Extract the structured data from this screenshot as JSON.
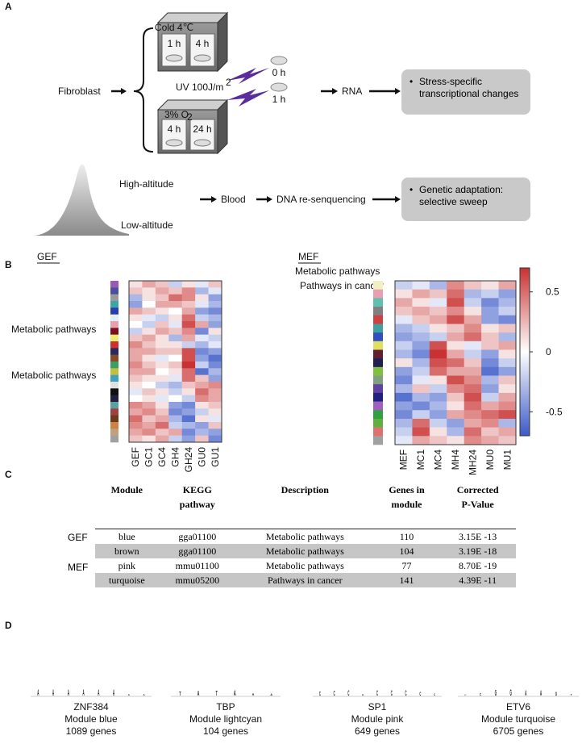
{
  "panel_a": {
    "label": "A",
    "cube_cold": {
      "title": "Cold 4℃",
      "times": [
        "1 h",
        "4 h"
      ]
    },
    "cube_hypoxia": {
      "title": "3% O",
      "title_sub": "2",
      "times": [
        "4 h",
        "24 h"
      ]
    },
    "source": "Fibroblast",
    "uv": "UV 100J/m",
    "uv_sup": "2",
    "uv_times": [
      "0 h",
      "1 h"
    ],
    "rna": "RNA",
    "rna_result": "Stress-specific transcriptional changes",
    "high": "High-altitude",
    "low": "Low-altitude",
    "blood": "Blood",
    "dna": "DNA re-senquencing",
    "dna_result": "Genetic adaptation: selective sweep"
  },
  "panel_b": {
    "label": "B",
    "heatmaps": [
      {
        "title": "GEF",
        "columns": [
          "GEF",
          "GC1",
          "GC4",
          "GH4",
          "GH24",
          "GU0",
          "GU1"
        ],
        "annotations": [
          "Metabolic pathways",
          "Metabolic pathways"
        ],
        "row_colors": [
          "#9b59b6",
          "#4b4ea0",
          "#9a9a9a",
          "#3aa6a6",
          "#2a3bb3",
          "#e0f0f0",
          "#e8a0b0",
          "#7a1020",
          "#e8f070",
          "#d03030",
          "#2a2a60",
          "#8a4a2a",
          "#3aa060",
          "#c0c040",
          "#40a0c0",
          "#e0e0e0",
          "#101010",
          "#202040",
          "#5aa0a0",
          "#a04040",
          "#6b3a1a",
          "#d08040",
          "#c0a080",
          "#a0a0a0"
        ],
        "values": [
          [
            0.1,
            0.3,
            0.2,
            -0.2,
            0.1,
            -0.1,
            0.2
          ],
          [
            0.2,
            0.1,
            0.3,
            0.2,
            0.4,
            -0.3,
            -0.1
          ],
          [
            -0.3,
            0.1,
            0.2,
            0.5,
            0.4,
            0.1,
            -0.4
          ],
          [
            -0.4,
            0.0,
            0.3,
            0.3,
            0.2,
            -0.1,
            -0.3
          ],
          [
            0.3,
            0.2,
            0.1,
            0.0,
            0.3,
            -0.4,
            -0.5
          ],
          [
            0.1,
            -0.1,
            -0.2,
            0.1,
            0.5,
            -0.2,
            -0.3
          ],
          [
            0.0,
            -0.2,
            0.2,
            -0.1,
            0.6,
            0.3,
            -0.4
          ],
          [
            -0.2,
            0.1,
            0.3,
            0.2,
            0.4,
            -0.5,
            0.1
          ],
          [
            0.2,
            0.3,
            0.1,
            -0.3,
            0.3,
            -0.1,
            -0.2
          ],
          [
            0.4,
            0.2,
            0.1,
            0.1,
            -0.2,
            -0.3,
            -0.1
          ],
          [
            0.3,
            0.3,
            0.2,
            0.2,
            0.6,
            -0.5,
            -0.4
          ],
          [
            0.3,
            0.1,
            -0.1,
            0.0,
            0.6,
            -0.4,
            -0.6
          ],
          [
            0.4,
            0.2,
            0.1,
            0.2,
            0.7,
            -0.2,
            -0.5
          ],
          [
            0.3,
            0.3,
            0.0,
            0.1,
            0.5,
            -0.6,
            -0.3
          ],
          [
            0.2,
            0.1,
            0.1,
            -0.1,
            0.5,
            0.2,
            -0.4
          ],
          [
            0.1,
            0.0,
            -0.2,
            -0.3,
            0.2,
            0.3,
            0.4
          ],
          [
            -0.1,
            0.2,
            0.1,
            -0.2,
            0.1,
            0.5,
            0.3
          ],
          [
            0.0,
            0.1,
            -0.1,
            0.0,
            -0.2,
            0.4,
            0.3
          ],
          [
            0.4,
            0.3,
            0.1,
            -0.4,
            -0.5,
            0.1,
            0.2
          ],
          [
            0.3,
            0.4,
            0.2,
            -0.5,
            -0.4,
            -0.2,
            0.1
          ],
          [
            0.5,
            0.2,
            0.3,
            -0.3,
            -0.6,
            0.1,
            -0.1
          ],
          [
            0.4,
            0.3,
            0.5,
            -0.2,
            -0.3,
            -0.4,
            0.2
          ],
          [
            0.3,
            0.4,
            0.2,
            0.3,
            -0.5,
            -0.3,
            -0.4
          ],
          [
            0.2,
            0.1,
            0.3,
            -0.2,
            -0.4,
            0.2,
            -0.5
          ]
        ]
      },
      {
        "title": "MEF",
        "columns": [
          "MEF",
          "MC1",
          "MC4",
          "MH4",
          "MH24",
          "MU0",
          "MU1"
        ],
        "annotations": [
          "Metabolic pathways",
          "Pathways in cancer"
        ],
        "row_colors": [
          "#f0f0c0",
          "#e8a0b0",
          "#60c0b0",
          "#808080",
          "#d04040",
          "#40a0a0",
          "#3050c0",
          "#e0e060",
          "#602030",
          "#202050",
          "#80c040",
          "#80a080",
          "#6040a0",
          "#202080",
          "#a060c0",
          "#30a040",
          "#60b040",
          "#e07070",
          "#a0a0a0"
        ],
        "values": [
          [
            -0.2,
            -0.1,
            -0.3,
            0.4,
            0.2,
            0.1,
            0.3
          ],
          [
            0.1,
            0.3,
            0.2,
            0.5,
            -0.3,
            -0.2,
            -0.4
          ],
          [
            0.3,
            0.1,
            -0.1,
            0.6,
            -0.2,
            -0.5,
            -0.3
          ],
          [
            0.2,
            0.3,
            0.2,
            0.4,
            0.1,
            -0.4,
            -0.2
          ],
          [
            -0.1,
            0.2,
            0.3,
            0.6,
            0.3,
            -0.4,
            -0.5
          ],
          [
            -0.3,
            -0.2,
            0.1,
            0.2,
            0.4,
            0.1,
            0.2
          ],
          [
            -0.4,
            -0.3,
            -0.2,
            0.3,
            0.5,
            0.2,
            -0.3
          ],
          [
            -0.2,
            -0.4,
            0.6,
            0.1,
            -0.1,
            0.2,
            0.3
          ],
          [
            -0.3,
            -0.5,
            0.7,
            0.3,
            -0.2,
            -0.4,
            0.1
          ],
          [
            0.1,
            -0.3,
            0.6,
            0.5,
            0.2,
            -0.5,
            -0.2
          ],
          [
            -0.4,
            -0.2,
            0.5,
            0.3,
            0.3,
            -0.6,
            -0.4
          ],
          [
            -0.5,
            -0.1,
            0.1,
            0.6,
            0.4,
            -0.3,
            0.2
          ],
          [
            -0.3,
            0.2,
            -0.2,
            0.4,
            0.5,
            -0.4,
            0.1
          ],
          [
            -0.6,
            -0.3,
            -0.4,
            0.2,
            0.6,
            -0.2,
            0.3
          ],
          [
            -0.4,
            -0.5,
            -0.3,
            0.1,
            0.5,
            0.3,
            0.4
          ],
          [
            -0.5,
            -0.2,
            -0.4,
            0.3,
            0.4,
            0.5,
            0.6
          ],
          [
            -0.3,
            0.5,
            -0.2,
            -0.4,
            0.3,
            0.4,
            -0.3
          ],
          [
            -0.2,
            0.6,
            0.1,
            -0.3,
            0.5,
            0.2,
            0.3
          ],
          [
            -0.1,
            0.3,
            0.2,
            0.1,
            0.4,
            0.3,
            0.2
          ]
        ]
      }
    ],
    "colorbar": {
      "lim": [
        -0.7,
        0.7
      ],
      "ticks": [
        0.5,
        0,
        -0.5
      ],
      "low_color": "#3c5ac8",
      "mid_color": "#ffffff",
      "high_color": "#c83232"
    }
  },
  "panel_c": {
    "label": "C",
    "header": [
      [
        "Module"
      ],
      [
        "KEGG",
        "pathway"
      ],
      [
        "Description"
      ],
      [
        "Genes in",
        "module"
      ],
      [
        "Corrected",
        "P-Value"
      ]
    ],
    "groups": [
      "GEF",
      "MEF"
    ],
    "rows": [
      [
        "blue",
        "gga01100",
        "Metabolic pathways",
        "110",
        "3.15E -13"
      ],
      [
        "brown",
        "gga01100",
        "Metabolic pathways",
        "104",
        "3.19E -18"
      ],
      [
        "pink",
        "mmu01100",
        "Metabolic pathways",
        "77",
        "8.70E -19"
      ],
      [
        "turquoise",
        "mmu05200",
        "Pathways in cancer",
        "141",
        "4.39E -11"
      ]
    ]
  },
  "panel_d": {
    "label": "D",
    "ylim": [
      0,
      2
    ],
    "letter_colors": {
      "A": "#2e8b2e",
      "C": "#2b3fc7",
      "G": "#e8a33a",
      "T": "#c0302a"
    },
    "motifs": [
      {
        "factor": "ZNF384",
        "module": "Module blue",
        "genes": "1089 genes",
        "letters": [
          "A",
          "A",
          "A",
          "A",
          "A",
          "A",
          "A",
          "A"
        ],
        "heights": [
          1.9,
          1.9,
          1.9,
          1.9,
          1.9,
          1.9,
          0.5,
          0.5
        ]
      },
      {
        "factor": "TBP",
        "module": "Module lightcyan",
        "genes": "104 genes",
        "letters": [
          "T",
          "A",
          "T",
          "A",
          "A",
          "A"
        ],
        "heights": [
          1.2,
          1.4,
          1.3,
          1.5,
          0.8,
          0.6
        ]
      },
      {
        "factor": "SP1",
        "module": "Module pink",
        "genes": "649 genes",
        "letters": [
          "C",
          "C",
          "C",
          "G",
          "C",
          "C",
          "C",
          "C",
          "C"
        ],
        "heights": [
          1.2,
          1.4,
          1.6,
          0.4,
          1.5,
          1.6,
          1.6,
          1.0,
          0.6
        ]
      },
      {
        "factor": "ETV6",
        "module": "Module turquoise",
        "genes": "6705 genes",
        "letters": [
          "C",
          "C",
          "G",
          "G",
          "A",
          "A",
          "G",
          "T"
        ],
        "heights": [
          0.3,
          0.8,
          1.7,
          1.8,
          1.6,
          1.5,
          1.1,
          0.5
        ]
      }
    ]
  }
}
